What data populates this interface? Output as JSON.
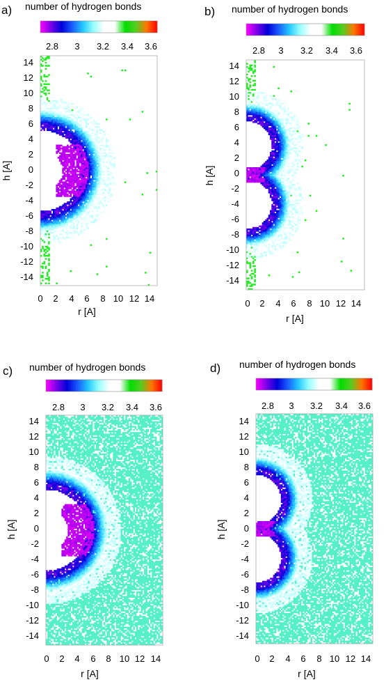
{
  "chart_data": [
    {
      "type": "heatmap",
      "panel_label": "a)",
      "colorbar_title": "number of hydrogen bonds",
      "colorbar_ticks": [
        "2.8",
        "3",
        "3.2",
        "3.4",
        "3.6"
      ],
      "colorbar_range": [
        2.7,
        3.7
      ],
      "xlabel": "r [A]",
      "ylabel": "h [A]",
      "x_ticks": [
        "0",
        "2",
        "4",
        "6",
        "8",
        "10",
        "12",
        "14"
      ],
      "y_ticks": [
        "14",
        "12",
        "10",
        "8",
        "6",
        "4",
        "2",
        "0",
        "-2",
        "-4",
        "-6",
        "-8",
        "-10",
        "-12",
        "-14"
      ],
      "xlim": [
        0,
        15
      ],
      "ylim": [
        -15,
        15
      ],
      "shape": {
        "lobes": 1,
        "lobe_centers_h": [
          0
        ],
        "lobe_radius": 6.2,
        "inner_core": "magenta near r 2-4, h -3 to 3"
      },
      "background": "mostly empty with sparse green points near r 0-1",
      "grid": false
    },
    {
      "type": "heatmap",
      "panel_label": "b)",
      "colorbar_title": "number of hydrogen bonds",
      "colorbar_ticks": [
        "2.8",
        "3",
        "3.2",
        "3.4",
        "3.6"
      ],
      "colorbar_range": [
        2.7,
        3.7
      ],
      "xlabel": "r [A]",
      "ylabel": "h [A]",
      "x_ticks": [
        "0",
        "2",
        "4",
        "6",
        "8",
        "10",
        "12",
        "14"
      ],
      "y_ticks": [
        "14",
        "12",
        "10",
        "8",
        "6",
        "4",
        "2",
        "0",
        "-2",
        "-4",
        "-6",
        "-8",
        "-10",
        "-12",
        "-14"
      ],
      "xlim": [
        0,
        15
      ],
      "ylim": [
        -15,
        15
      ],
      "shape": {
        "lobes": 2,
        "lobe_centers_h": [
          3.8,
          -3.8
        ],
        "lobe_radius": 4.1,
        "inner_core": "magenta near r 0-2, h around 0"
      },
      "background": "mostly empty with sparse green points near r 0-1",
      "grid": false
    },
    {
      "type": "heatmap",
      "panel_label": "c)",
      "colorbar_title": "number of hydrogen bonds",
      "colorbar_ticks": [
        "2.8",
        "3",
        "3.2",
        "3.4",
        "3.6"
      ],
      "colorbar_range": [
        2.7,
        3.7
      ],
      "xlabel": "r [A]",
      "ylabel": "h [A]",
      "x_ticks": [
        "0",
        "2",
        "4",
        "6",
        "8",
        "10",
        "12",
        "14"
      ],
      "y_ticks": [
        "14",
        "12",
        "10",
        "8",
        "6",
        "4",
        "2",
        "0",
        "-2",
        "-4",
        "-6",
        "-8",
        "-10",
        "-12",
        "-14"
      ],
      "xlim": [
        0,
        15
      ],
      "ylim": [
        -15,
        15
      ],
      "shape": {
        "lobes": 1,
        "lobe_centers_h": [
          0
        ],
        "lobe_radius": 6.2,
        "inner_core": "magenta near r 2-4, h -3 to 3"
      },
      "background": "mostly filled with teal (~3.3) and scattered white gaps",
      "grid": false
    },
    {
      "type": "heatmap",
      "panel_label": "d)",
      "colorbar_title": "number of hydrogen bonds",
      "colorbar_ticks": [
        "2.8",
        "3",
        "3.2",
        "3.4",
        "3.6"
      ],
      "colorbar_range": [
        2.7,
        3.7
      ],
      "xlabel": "r [A]",
      "ylabel": "h [A]",
      "x_ticks": [
        "0",
        "2",
        "4",
        "6",
        "8",
        "10",
        "12",
        "14"
      ],
      "y_ticks": [
        "14",
        "12",
        "10",
        "8",
        "6",
        "4",
        "2",
        "0",
        "-2",
        "-4",
        "-6",
        "-8",
        "-10",
        "-12",
        "-14"
      ],
      "xlim": [
        0,
        15
      ],
      "ylim": [
        -15,
        15
      ],
      "shape": {
        "lobes": 2,
        "lobe_centers_h": [
          3.8,
          -3.8
        ],
        "lobe_radius": 4.1,
        "inner_core": "magenta near r 0-2, h around 0"
      },
      "background": "mostly filled with teal (~3.3) and scattered white gaps",
      "grid": false
    }
  ],
  "colors": {
    "colormap": [
      "#ff00ff",
      "#7a00e8",
      "#0000d8",
      "#1a5cff",
      "#22c8ff",
      "#98ffff",
      "#ffffff",
      "#ffffff",
      "#00dd00",
      "#55cc22",
      "#ff7700",
      "#ff0000"
    ],
    "background_fill": "#55f0c8",
    "outer_green": "#22ee22"
  }
}
